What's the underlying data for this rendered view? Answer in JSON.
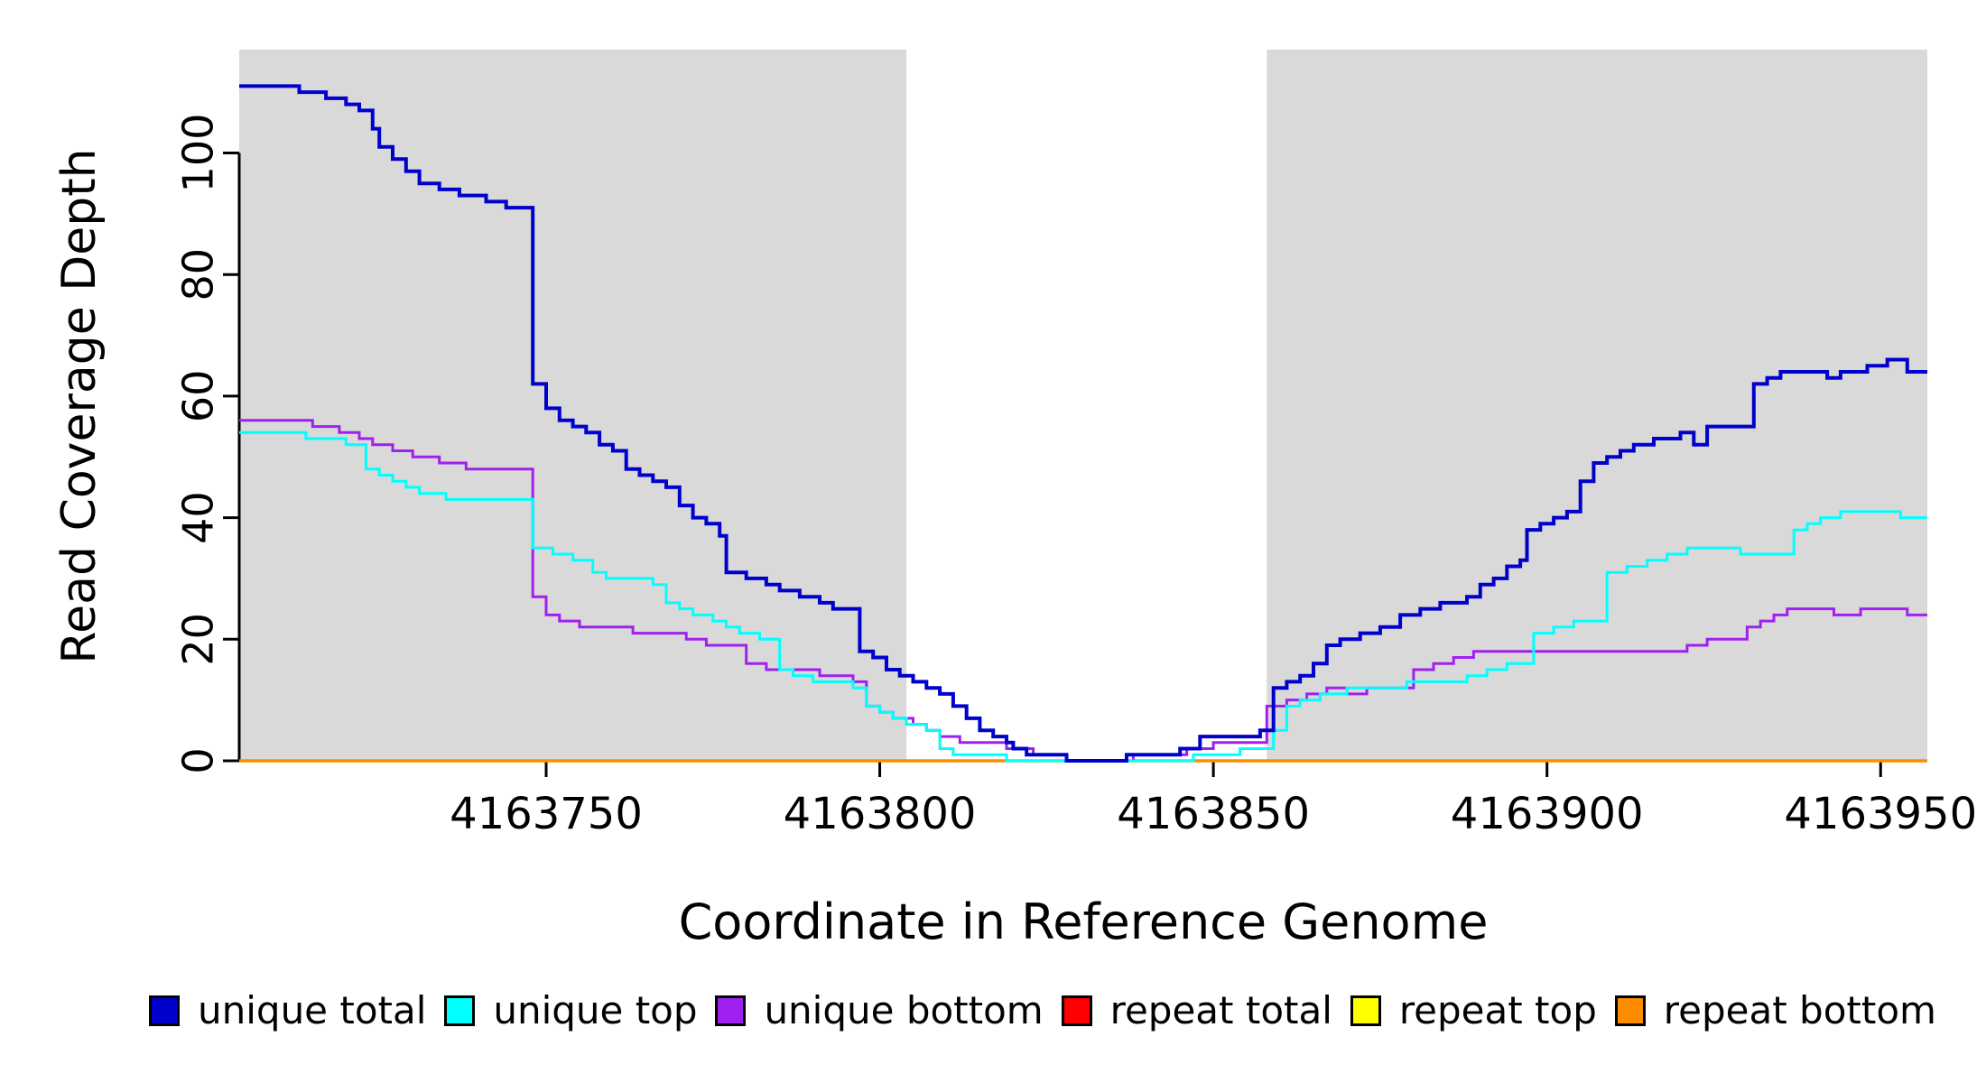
{
  "chart_data": {
    "type": "line",
    "subtype": "step",
    "title": "",
    "xlabel": "Coordinate in Reference Genome",
    "ylabel": "Read Coverage Depth",
    "xlim": [
      4163704,
      4163957
    ],
    "ylim": [
      0,
      117
    ],
    "xticks": [
      4163750,
      4163800,
      4163850,
      4163900,
      4163950
    ],
    "yticks": [
      0,
      20,
      40,
      60,
      80,
      100
    ],
    "grid": false,
    "legend_position": "bottom",
    "background_color": "#FFFFFF",
    "shaded_regions": [
      {
        "x0": 4163704,
        "x1": 4163804,
        "color": "#D9D9D9"
      },
      {
        "x0": 4163858,
        "x1": 4163957,
        "color": "#D9D9D9"
      }
    ],
    "series": [
      {
        "name": "unique total",
        "color": "#0000CD",
        "line_width": 4,
        "points": [
          [
            4163704,
            111
          ],
          [
            4163713,
            110
          ],
          [
            4163717,
            109
          ],
          [
            4163720,
            108
          ],
          [
            4163722,
            107
          ],
          [
            4163724,
            104
          ],
          [
            4163725,
            101
          ],
          [
            4163727,
            99
          ],
          [
            4163729,
            97
          ],
          [
            4163731,
            95
          ],
          [
            4163734,
            94
          ],
          [
            4163737,
            93
          ],
          [
            4163741,
            92
          ],
          [
            4163744,
            91
          ],
          [
            4163748,
            62
          ],
          [
            4163750,
            58
          ],
          [
            4163752,
            56
          ],
          [
            4163754,
            55
          ],
          [
            4163756,
            54
          ],
          [
            4163758,
            52
          ],
          [
            4163760,
            51
          ],
          [
            4163762,
            48
          ],
          [
            4163764,
            47
          ],
          [
            4163766,
            46
          ],
          [
            4163768,
            45
          ],
          [
            4163770,
            42
          ],
          [
            4163772,
            40
          ],
          [
            4163774,
            39
          ],
          [
            4163776,
            37
          ],
          [
            4163777,
            31
          ],
          [
            4163780,
            30
          ],
          [
            4163783,
            29
          ],
          [
            4163785,
            28
          ],
          [
            4163788,
            27
          ],
          [
            4163791,
            26
          ],
          [
            4163793,
            25
          ],
          [
            4163797,
            18
          ],
          [
            4163799,
            17
          ],
          [
            4163801,
            15
          ],
          [
            4163803,
            14
          ],
          [
            4163805,
            13
          ],
          [
            4163807,
            12
          ],
          [
            4163809,
            11
          ],
          [
            4163811,
            9
          ],
          [
            4163813,
            7
          ],
          [
            4163815,
            5
          ],
          [
            4163817,
            4
          ],
          [
            4163819,
            3
          ],
          [
            4163820,
            2
          ],
          [
            4163822,
            1
          ],
          [
            4163826,
            1
          ],
          [
            4163828,
            0
          ],
          [
            4163834,
            0
          ],
          [
            4163837,
            1
          ],
          [
            4163841,
            1
          ],
          [
            4163845,
            2
          ],
          [
            4163848,
            4
          ],
          [
            4163853,
            4
          ],
          [
            4163857,
            5
          ],
          [
            4163859,
            12
          ],
          [
            4163861,
            13
          ],
          [
            4163863,
            14
          ],
          [
            4163865,
            16
          ],
          [
            4163867,
            19
          ],
          [
            4163869,
            20
          ],
          [
            4163872,
            21
          ],
          [
            4163875,
            22
          ],
          [
            4163878,
            24
          ],
          [
            4163881,
            25
          ],
          [
            4163884,
            26
          ],
          [
            4163888,
            27
          ],
          [
            4163890,
            29
          ],
          [
            4163892,
            30
          ],
          [
            4163894,
            32
          ],
          [
            4163896,
            33
          ],
          [
            4163897,
            38
          ],
          [
            4163899,
            39
          ],
          [
            4163901,
            40
          ],
          [
            4163903,
            41
          ],
          [
            4163905,
            46
          ],
          [
            4163907,
            49
          ],
          [
            4163909,
            50
          ],
          [
            4163911,
            51
          ],
          [
            4163913,
            52
          ],
          [
            4163916,
            53
          ],
          [
            4163920,
            54
          ],
          [
            4163922,
            52
          ],
          [
            4163924,
            55
          ],
          [
            4163929,
            55
          ],
          [
            4163931,
            62
          ],
          [
            4163933,
            63
          ],
          [
            4163935,
            64
          ],
          [
            4163941,
            64
          ],
          [
            4163942,
            63
          ],
          [
            4163944,
            64
          ],
          [
            4163948,
            65
          ],
          [
            4163951,
            66
          ],
          [
            4163954,
            64
          ]
        ]
      },
      {
        "name": "unique top",
        "color": "#00FFFF",
        "line_width": 3,
        "points": [
          [
            4163704,
            54
          ],
          [
            4163714,
            53
          ],
          [
            4163720,
            52
          ],
          [
            4163723,
            48
          ],
          [
            4163725,
            47
          ],
          [
            4163727,
            46
          ],
          [
            4163729,
            45
          ],
          [
            4163731,
            44
          ],
          [
            4163735,
            43
          ],
          [
            4163748,
            35
          ],
          [
            4163751,
            34
          ],
          [
            4163754,
            33
          ],
          [
            4163757,
            31
          ],
          [
            4163759,
            30
          ],
          [
            4163764,
            30
          ],
          [
            4163766,
            29
          ],
          [
            4163768,
            26
          ],
          [
            4163770,
            25
          ],
          [
            4163772,
            24
          ],
          [
            4163775,
            23
          ],
          [
            4163777,
            22
          ],
          [
            4163779,
            21
          ],
          [
            4163782,
            20
          ],
          [
            4163785,
            15
          ],
          [
            4163787,
            14
          ],
          [
            4163790,
            13
          ],
          [
            4163796,
            12
          ],
          [
            4163798,
            9
          ],
          [
            4163800,
            8
          ],
          [
            4163802,
            7
          ],
          [
            4163804,
            6
          ],
          [
            4163807,
            5
          ],
          [
            4163809,
            2
          ],
          [
            4163811,
            1
          ],
          [
            4163816,
            1
          ],
          [
            4163819,
            0
          ],
          [
            4163844,
            0
          ],
          [
            4163847,
            1
          ],
          [
            4163851,
            1
          ],
          [
            4163854,
            2
          ],
          [
            4163857,
            2
          ],
          [
            4163859,
            5
          ],
          [
            4163861,
            9
          ],
          [
            4163863,
            10
          ],
          [
            4163866,
            11
          ],
          [
            4163870,
            12
          ],
          [
            4163876,
            12
          ],
          [
            4163879,
            13
          ],
          [
            4163885,
            13
          ],
          [
            4163888,
            14
          ],
          [
            4163891,
            15
          ],
          [
            4163894,
            16
          ],
          [
            4163897,
            16
          ],
          [
            4163898,
            21
          ],
          [
            4163901,
            22
          ],
          [
            4163904,
            23
          ],
          [
            4163908,
            23
          ],
          [
            4163909,
            31
          ],
          [
            4163912,
            32
          ],
          [
            4163915,
            33
          ],
          [
            4163918,
            34
          ],
          [
            4163921,
            35
          ],
          [
            4163927,
            35
          ],
          [
            4163929,
            34
          ],
          [
            4163935,
            34
          ],
          [
            4163937,
            38
          ],
          [
            4163939,
            39
          ],
          [
            4163941,
            40
          ],
          [
            4163944,
            41
          ],
          [
            4163951,
            41
          ],
          [
            4163953,
            40
          ]
        ]
      },
      {
        "name": "unique bottom",
        "color": "#A020F0",
        "line_width": 3,
        "points": [
          [
            4163704,
            56
          ],
          [
            4163712,
            56
          ],
          [
            4163715,
            55
          ],
          [
            4163719,
            54
          ],
          [
            4163722,
            53
          ],
          [
            4163724,
            52
          ],
          [
            4163727,
            51
          ],
          [
            4163730,
            50
          ],
          [
            4163734,
            49
          ],
          [
            4163738,
            48
          ],
          [
            4163748,
            27
          ],
          [
            4163750,
            24
          ],
          [
            4163752,
            23
          ],
          [
            4163755,
            22
          ],
          [
            4163761,
            22
          ],
          [
            4163763,
            21
          ],
          [
            4163768,
            21
          ],
          [
            4163771,
            20
          ],
          [
            4163774,
            19
          ],
          [
            4163778,
            19
          ],
          [
            4163780,
            16
          ],
          [
            4163783,
            15
          ],
          [
            4163788,
            15
          ],
          [
            4163791,
            14
          ],
          [
            4163794,
            14
          ],
          [
            4163796,
            13
          ],
          [
            4163798,
            9
          ],
          [
            4163800,
            8
          ],
          [
            4163802,
            7
          ],
          [
            4163805,
            6
          ],
          [
            4163807,
            5
          ],
          [
            4163809,
            4
          ],
          [
            4163812,
            3
          ],
          [
            4163816,
            3
          ],
          [
            4163819,
            2
          ],
          [
            4163823,
            1
          ],
          [
            4163828,
            0
          ],
          [
            4163835,
            0
          ],
          [
            4163838,
            1
          ],
          [
            4163843,
            1
          ],
          [
            4163846,
            2
          ],
          [
            4163850,
            3
          ],
          [
            4163856,
            3
          ],
          [
            4163858,
            9
          ],
          [
            4163861,
            10
          ],
          [
            4163864,
            11
          ],
          [
            4163867,
            12
          ],
          [
            4163870,
            11
          ],
          [
            4163873,
            12
          ],
          [
            4163879,
            12
          ],
          [
            4163880,
            15
          ],
          [
            4163883,
            16
          ],
          [
            4163886,
            17
          ],
          [
            4163889,
            18
          ],
          [
            4163918,
            18
          ],
          [
            4163921,
            19
          ],
          [
            4163924,
            20
          ],
          [
            4163928,
            20
          ],
          [
            4163930,
            22
          ],
          [
            4163932,
            23
          ],
          [
            4163934,
            24
          ],
          [
            4163936,
            25
          ],
          [
            4163940,
            25
          ],
          [
            4163943,
            24
          ],
          [
            4163947,
            25
          ],
          [
            4163952,
            25
          ],
          [
            4163954,
            24
          ]
        ]
      },
      {
        "name": "repeat total",
        "color": "#FF0000",
        "line_width": 3,
        "points": [
          [
            4163704,
            0
          ]
        ]
      },
      {
        "name": "repeat top",
        "color": "#FFFF00",
        "line_width": 3,
        "points": [
          [
            4163704,
            0
          ]
        ]
      },
      {
        "name": "repeat bottom",
        "color": "#FF8C00",
        "line_width": 3.5,
        "points": [
          [
            4163704,
            0
          ]
        ]
      }
    ]
  }
}
